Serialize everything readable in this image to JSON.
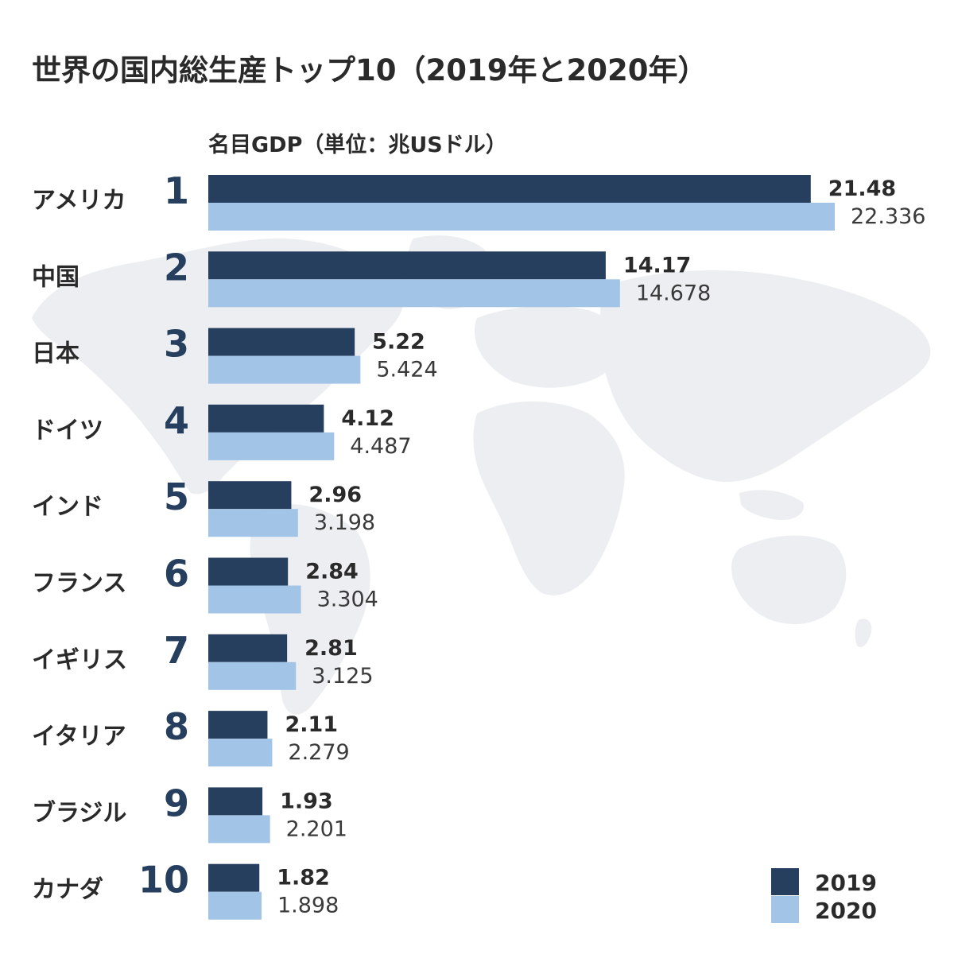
{
  "chart_data": {
    "type": "bar",
    "orientation": "horizontal",
    "title": "世界の国内総生産トップ10（2019年と2020年）",
    "subtitle": "名目GDP（単位：兆USドル）",
    "categories": [
      "アメリカ",
      "中国",
      "日本",
      "ドイツ",
      "インド",
      "フランス",
      "イギリス",
      "イタリア",
      "ブラジル",
      "カナダ"
    ],
    "ranks": [
      "1",
      "2",
      "3",
      "4",
      "5",
      "6",
      "7",
      "8",
      "9",
      "10"
    ],
    "series": [
      {
        "name": "2019",
        "color": "#263f5e",
        "values": [
          21.48,
          14.17,
          5.22,
          4.12,
          2.96,
          2.84,
          2.81,
          2.11,
          1.93,
          1.82
        ],
        "labels": [
          "21.48",
          "14.17",
          "5.22",
          "4.12",
          "2.96",
          "2.84",
          "2.81",
          "2.11",
          "1.93",
          "1.82"
        ]
      },
      {
        "name": "2020",
        "color": "#a2c4e6",
        "values": [
          22.336,
          14.678,
          5.424,
          4.487,
          3.198,
          3.304,
          3.125,
          2.279,
          2.201,
          1.898
        ],
        "labels": [
          "22.336",
          "14.678",
          "5.424",
          "4.487",
          "3.198",
          "3.304",
          "3.125",
          "2.279",
          "2.201",
          "1.898"
        ]
      }
    ],
    "xlim": [
      0,
      22.336
    ],
    "legend_position": "bottom-right",
    "grid": false,
    "background": "world-map"
  }
}
